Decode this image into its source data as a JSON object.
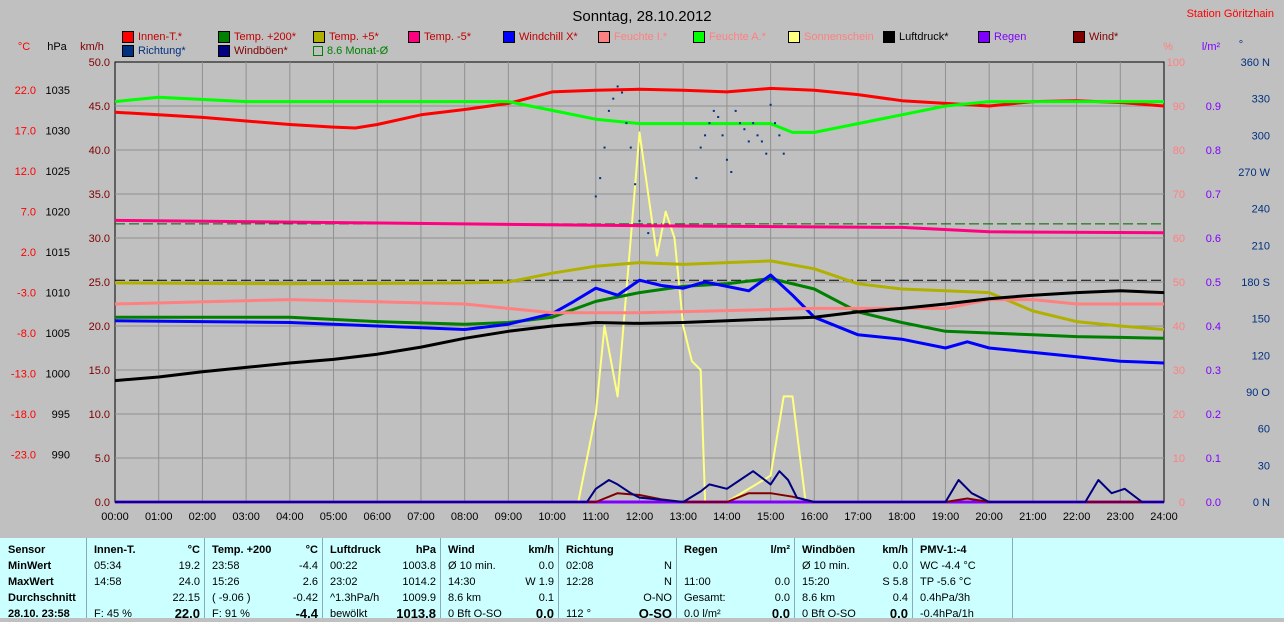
{
  "title": "Sonntag, 28.10.2012",
  "station": "Station Göritzhain",
  "colors": {
    "background": "#c0c0c0",
    "plot_bg": "#c0c0c0",
    "grid": "#909090",
    "innen": "#ff0000",
    "temp200": "#008000",
    "temp5": "#b0b000",
    "tempminus5": "#ff0080",
    "windchill": "#0000ff",
    "feuchte_i": "#ff8080",
    "feuchte_a": "#00ff00",
    "sonnenschein": "#ffff80",
    "luftdruck": "#000000",
    "regen": "#8000ff",
    "wind": "#800000",
    "richtung": "#003080",
    "windboeen": "#000080",
    "monat": "#008000"
  },
  "axes": {
    "unit_celsius": "°C",
    "unit_hpa": "hPa",
    "unit_kmh": "km/h",
    "unit_percent": "%",
    "unit_lm2": "l/m²",
    "unit_deg": "°",
    "celsius_ticks": [
      "22.0",
      "17.0",
      "12.0",
      "7.0",
      "2.0",
      "-3.0",
      "-8.0",
      "-13.0",
      "-18.0",
      "-23.0"
    ],
    "hpa_ticks": [
      "1035",
      "1030",
      "1025",
      "1020",
      "1015",
      "1010",
      "1005",
      "1000",
      "995",
      "990"
    ],
    "kmh_ticks": [
      "50.0",
      "45.0",
      "40.0",
      "35.0",
      "30.0",
      "25.0",
      "20.0",
      "15.0",
      "10.0",
      "5.0",
      "0.0"
    ],
    "percent_ticks": [
      "100",
      "90",
      "80",
      "70",
      "60",
      "50",
      "40",
      "30",
      "20",
      "10",
      "0"
    ],
    "lm2_ticks": [
      "0.9",
      "0.8",
      "0.7",
      "0.6",
      "0.5",
      "0.4",
      "0.3",
      "0.2",
      "0.1",
      "0.0"
    ],
    "deg_ticks": [
      "360 N",
      "330",
      "300",
      "270 W",
      "240",
      "210",
      "180 S",
      "150",
      "120",
      "90 O",
      "60",
      "30",
      "0 N"
    ],
    "time_ticks": [
      "00:00",
      "01:00",
      "02:00",
      "03:00",
      "04:00",
      "05:00",
      "06:00",
      "07:00",
      "08:00",
      "09:00",
      "10:00",
      "11:00",
      "12:00",
      "13:00",
      "14:00",
      "15:00",
      "16:00",
      "17:00",
      "18:00",
      "19:00",
      "20:00",
      "21:00",
      "22:00",
      "23:00",
      "24:00"
    ]
  },
  "legend": [
    {
      "label": "Innen-T.*",
      "color": "#ff0000",
      "text_color": "#c00000",
      "kind": "box"
    },
    {
      "label": "Temp. +200*",
      "color": "#008000",
      "text_color": "#c00000",
      "kind": "box"
    },
    {
      "label": "Temp. +5*",
      "color": "#b0b000",
      "text_color": "#c00000",
      "kind": "box"
    },
    {
      "label": "Temp. -5*",
      "color": "#ff0080",
      "text_color": "#c00000",
      "kind": "box"
    },
    {
      "label": "Windchill X*",
      "color": "#0000ff",
      "text_color": "#c00000",
      "kind": "box"
    },
    {
      "label": "Feuchte I.*",
      "color": "#ff8080",
      "text_color": "#ff8080",
      "kind": "box"
    },
    {
      "label": "Feuchte A.*",
      "color": "#00ff00",
      "text_color": "#ff8080",
      "kind": "box"
    },
    {
      "label": "Sonnenschein",
      "color": "#ffff80",
      "text_color": "#ff8080",
      "kind": "box"
    },
    {
      "label": "Luftdruck*",
      "color": "#000000",
      "text_color": "#000000",
      "kind": "box"
    },
    {
      "label": "Regen",
      "color": "#8000ff",
      "text_color": "#8000ff",
      "kind": "box"
    },
    {
      "label": "Wind*",
      "color": "#800000",
      "text_color": "#800000",
      "kind": "box"
    },
    {
      "label": "Richtung*",
      "color": "#003080",
      "text_color": "#003080",
      "kind": "box"
    },
    {
      "label": "Windböen*",
      "color": "#000080",
      "text_color": "#800000",
      "kind": "box"
    },
    {
      "label": "8.6 Monat-Ø",
      "color": "#008000",
      "text_color": "#008000",
      "kind": "hollow"
    }
  ],
  "chart_data": {
    "type": "line",
    "title": "Sonntag, 28.10.2012",
    "x_unit": "hours",
    "xlim": [
      0,
      24
    ],
    "series": [
      {
        "name": "Innen-T.*",
        "axis": "celsius",
        "color": "#ff0000",
        "x": [
          0,
          1,
          2,
          3,
          4,
          5,
          5.5,
          6,
          7,
          8,
          9,
          10,
          11,
          12,
          13,
          14,
          15,
          16,
          17,
          18,
          19,
          20,
          21,
          22,
          23,
          24
        ],
        "values": [
          21.3,
          21.0,
          20.7,
          20.3,
          19.9,
          19.6,
          19.5,
          19.9,
          21.0,
          21.6,
          22.3,
          23.6,
          23.8,
          23.9,
          23.8,
          23.6,
          24.0,
          23.8,
          23.3,
          22.6,
          22.3,
          22.0,
          22.5,
          22.6,
          22.4,
          22.0
        ]
      },
      {
        "name": "Temp. +200*",
        "axis": "celsius",
        "color": "#008000",
        "x": [
          0,
          2,
          4,
          6,
          8,
          9,
          10,
          11,
          12,
          13,
          14,
          15,
          16,
          17,
          18,
          19,
          20,
          21,
          22,
          23,
          24
        ],
        "values": [
          -2.0,
          -2.0,
          -2.0,
          -2.5,
          -2.8,
          -2.6,
          -2.0,
          -0.2,
          0.8,
          1.5,
          1.8,
          2.4,
          1.2,
          -1.4,
          -2.6,
          -3.6,
          -3.8,
          -4.0,
          -4.2,
          -4.3,
          -4.4
        ]
      },
      {
        "name": "Temp. +5*",
        "axis": "celsius",
        "color": "#b0b000",
        "x": [
          0,
          4,
          8,
          9,
          10,
          11,
          12,
          13,
          14,
          15,
          16,
          17,
          18,
          19,
          20,
          21,
          22,
          23,
          24
        ],
        "values": [
          1.9,
          1.8,
          1.9,
          2.0,
          3.0,
          3.8,
          4.2,
          4.0,
          4.2,
          4.4,
          3.5,
          1.8,
          1.2,
          1.0,
          0.8,
          -1.3,
          -2.5,
          -3.0,
          -3.4
        ]
      },
      {
        "name": "Temp. -5*",
        "axis": "celsius",
        "color": "#ff0080",
        "x": [
          0,
          6,
          12,
          18,
          20,
          24
        ],
        "values": [
          9.0,
          8.7,
          8.4,
          8.2,
          7.7,
          7.6
        ]
      },
      {
        "name": "Windchill X*",
        "axis": "celsius",
        "color": "#0000ff",
        "x": [
          0,
          2,
          4,
          6,
          8,
          9,
          10,
          10.5,
          11,
          11.5,
          12,
          12.5,
          13,
          13.5,
          14,
          14.5,
          15,
          15.5,
          16,
          17,
          18,
          19,
          19.5,
          20,
          21,
          22,
          23,
          24
        ],
        "values": [
          -2.4,
          -2.5,
          -2.6,
          -3.0,
          -3.4,
          -2.8,
          -1.6,
          -0.2,
          1.3,
          0.5,
          2.2,
          1.6,
          1.3,
          2.0,
          1.5,
          1.0,
          2.8,
          0.5,
          -2.0,
          -4.0,
          -4.5,
          -5.5,
          -4.8,
          -5.5,
          -6.0,
          -6.5,
          -7.0,
          -7.2
        ]
      },
      {
        "name": "Feuchte I.*",
        "axis": "percent",
        "color": "#ff8080",
        "x": [
          0,
          4,
          8,
          10,
          12,
          16,
          18,
          19,
          20,
          21,
          22,
          24
        ],
        "values": [
          45,
          46,
          45,
          43,
          43,
          44,
          44,
          44,
          46,
          46,
          45,
          45
        ]
      },
      {
        "name": "Feuchte A.*",
        "axis": "percent",
        "color": "#00ff00",
        "x": [
          0,
          1,
          3,
          6,
          8,
          9,
          10,
          11,
          12,
          13,
          14,
          15,
          15.5,
          16,
          17,
          18,
          19,
          20,
          21,
          22,
          23,
          24
        ],
        "values": [
          91,
          92,
          91,
          91,
          91,
          91,
          89,
          87,
          86,
          86,
          86,
          86,
          84,
          84,
          86,
          88,
          90,
          91,
          91,
          91,
          91,
          91
        ]
      },
      {
        "name": "Sonnenschein",
        "axis": "kmh",
        "color": "#ffff80",
        "x": [
          0,
          10.6,
          11,
          11.2,
          11.5,
          11.8,
          12,
          12.2,
          12.4,
          12.6,
          12.8,
          13,
          13.2,
          13.4,
          13.5,
          14,
          15,
          15.3,
          15.5,
          15.8,
          16,
          24
        ],
        "values": [
          0,
          0,
          10,
          20,
          12,
          30,
          42,
          35,
          28,
          33,
          30,
          20,
          16,
          15,
          0,
          0,
          3,
          12,
          12,
          0,
          0,
          0
        ]
      },
      {
        "name": "Luftdruck*",
        "axis": "hpa",
        "color": "#000000",
        "x": [
          0,
          1,
          2,
          3,
          4,
          5,
          6,
          7,
          8,
          9,
          10,
          11,
          12,
          13,
          14,
          15,
          16,
          17,
          18,
          19,
          20,
          21,
          22,
          23,
          24
        ],
        "values": [
          1003.8,
          1004.2,
          1004.8,
          1005.3,
          1005.8,
          1006.2,
          1006.8,
          1007.6,
          1008.6,
          1009.4,
          1010.0,
          1010.4,
          1010.3,
          1010.4,
          1010.6,
          1010.8,
          1011.0,
          1011.6,
          1012.0,
          1012.5,
          1013.1,
          1013.5,
          1013.8,
          1014.0,
          1013.8
        ]
      },
      {
        "name": "Regen",
        "axis": "lm2",
        "color": "#8000ff",
        "x": [
          0,
          24
        ],
        "values": [
          0,
          0
        ]
      },
      {
        "name": "Wind*",
        "axis": "kmh",
        "color": "#800000",
        "x": [
          0,
          11,
          11.5,
          12,
          12.5,
          13,
          14,
          14.5,
          15,
          15.5,
          16,
          19,
          19.5,
          20,
          23,
          24
        ],
        "values": [
          0,
          0,
          1,
          0.8,
          0.3,
          0,
          0,
          1,
          1,
          0.6,
          0,
          0,
          0.4,
          0,
          0,
          0
        ]
      },
      {
        "name": "Windböen*",
        "axis": "kmh",
        "color": "#000080",
        "x": [
          0,
          10.8,
          11,
          11.3,
          11.5,
          11.8,
          12,
          13,
          13.4,
          13.6,
          14,
          14.3,
          14.6,
          15,
          15.2,
          15.4,
          15.6,
          16,
          19,
          19.3,
          19.6,
          20,
          22.2,
          22.5,
          22.8,
          23.1,
          23.5,
          24
        ],
        "values": [
          0,
          0,
          1.5,
          2.5,
          2.0,
          1.0,
          0.5,
          0,
          1.2,
          2.0,
          1.5,
          2.5,
          3.5,
          2.0,
          3.5,
          2.5,
          0.5,
          0,
          0,
          2.5,
          1.0,
          0,
          0,
          2.5,
          1.0,
          1.5,
          0,
          0
        ]
      },
      {
        "name": "8.6 Monat-Ø",
        "axis": "celsius",
        "color": "#008000",
        "x": [
          0,
          24
        ],
        "values": [
          8.6,
          8.6
        ]
      }
    ],
    "richtung_points": {
      "name": "Richtung*",
      "axis": "deg",
      "color": "#003080",
      "x": [
        11.0,
        11.1,
        11.2,
        11.3,
        11.4,
        11.5,
        11.6,
        11.7,
        11.8,
        11.9,
        12.0,
        12.2,
        13.3,
        13.4,
        13.5,
        13.6,
        13.7,
        13.8,
        13.9,
        14.0,
        14.1,
        14.2,
        14.3,
        14.4,
        14.5,
        14.6,
        14.7,
        14.8,
        14.9,
        15.0,
        15.1,
        15.2,
        15.3
      ],
      "values": [
        250,
        265,
        290,
        320,
        330,
        340,
        335,
        310,
        290,
        260,
        230,
        220,
        265,
        290,
        300,
        310,
        320,
        315,
        300,
        280,
        270,
        320,
        310,
        305,
        295,
        310,
        300,
        295,
        285,
        325,
        310,
        300,
        285
      ]
    },
    "dashed_lines": [
      {
        "axis": "celsius",
        "value": 2.2
      },
      {
        "axis": "celsius",
        "value": 8.6
      }
    ]
  },
  "stats": {
    "sensor": {
      "header": "Sensor",
      "rows": [
        "MinWert",
        "MaxWert",
        "Durchschnitt",
        "28.10. 23:58"
      ]
    },
    "innen": {
      "header": "Innen-T.",
      "unit": "°C",
      "rows": [
        [
          "05:34",
          "19.2"
        ],
        [
          "14:58",
          "24.0"
        ],
        [
          "",
          "22.15"
        ],
        [
          "F: 45 %",
          "22.0"
        ]
      ]
    },
    "temp": {
      "header": "Temp. +200",
      "unit": "°C",
      "rows": [
        [
          "23:58",
          "-4.4"
        ],
        [
          "15:26",
          "2.6"
        ],
        [
          "( -9.06 )",
          "-0.42"
        ],
        [
          "F: 91 %",
          "-4.4"
        ]
      ]
    },
    "luft": {
      "header": "Luftdruck",
      "unit": "hPa",
      "rows": [
        [
          "00:22",
          "1003.8"
        ],
        [
          "23:02",
          "1014.2"
        ],
        [
          "^1.3hPa/h",
          "1009.9"
        ],
        [
          "bewölkt",
          "1013.8"
        ]
      ]
    },
    "wind": {
      "header": "Wind",
      "unit": "km/h",
      "rows": [
        [
          "Ø 10 min.",
          "0.0"
        ],
        [
          "14:30",
          "W 1.9"
        ],
        [
          "8.6 km",
          "0.1"
        ],
        [
          "0 Bft O-SO",
          "0.0"
        ]
      ]
    },
    "richtung": {
      "header": "Richtung",
      "rows": [
        [
          "02:08",
          "N"
        ],
        [
          "12:28",
          "N"
        ],
        [
          "",
          "O-NO"
        ],
        [
          "112 °",
          "O-SO"
        ]
      ]
    },
    "regen": {
      "header": "Regen",
      "unit": "l/m²",
      "rows": [
        [
          "",
          ""
        ],
        [
          "11:00",
          "0.0"
        ],
        [
          "Gesamt:",
          "0.0"
        ],
        [
          "0.0 l/m²",
          "0.0"
        ]
      ]
    },
    "boeen": {
      "header": "Windböen",
      "unit": "km/h",
      "rows": [
        [
          "Ø 10 min.",
          "0.0"
        ],
        [
          "15:20",
          "S 5.8"
        ],
        [
          "8.6 km",
          "0.4"
        ],
        [
          "0 Bft O-SO",
          "0.0"
        ]
      ]
    },
    "pmv": {
      "header": "PMV-1:-4",
      "rows": [
        "WC -4.4 °C",
        "TP -5.6 °C",
        "0.4hPa/3h",
        "-0.4hPa/1h"
      ]
    }
  }
}
